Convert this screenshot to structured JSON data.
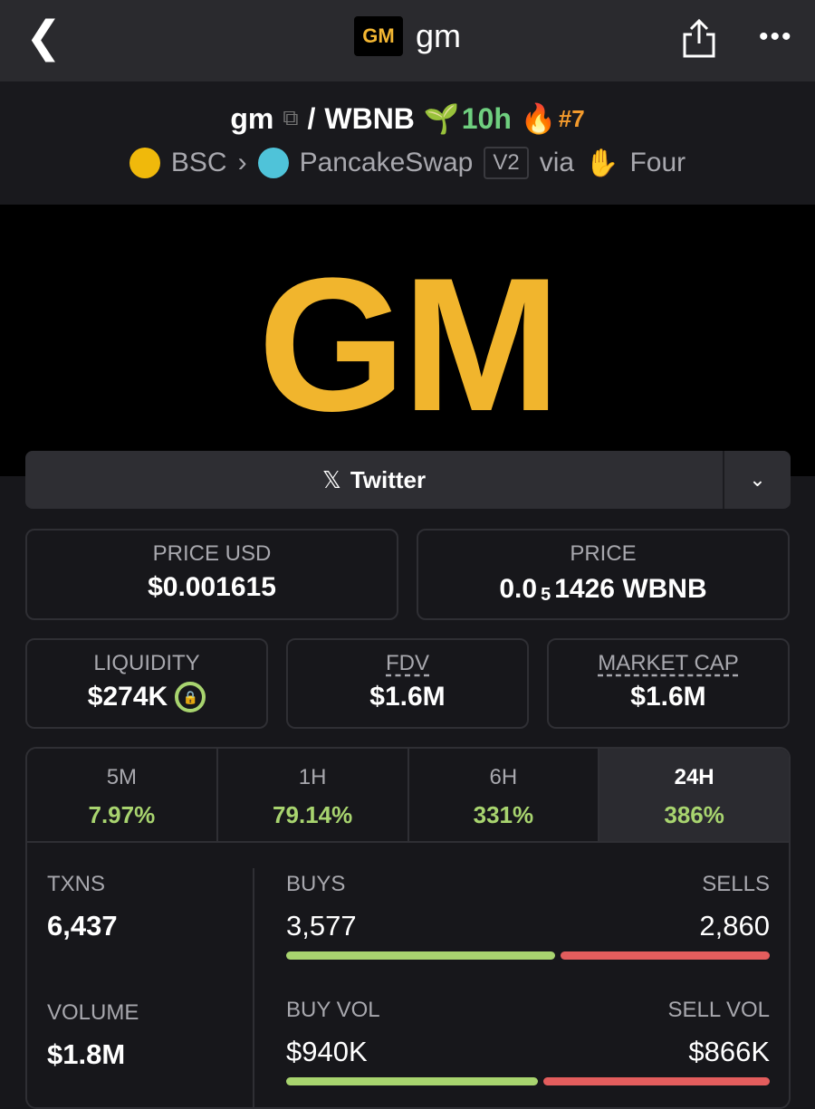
{
  "topbar": {
    "back_icon": "chevron-left-icon",
    "logo_text": "GM",
    "title": "gm",
    "share_icon": "share-icon",
    "more_icon": "ellipsis-icon"
  },
  "pair": {
    "base": "gm",
    "separator": "/",
    "quote": "WBNB",
    "age": "10h",
    "rank": "#7",
    "age_color": "#6fcf7f",
    "rank_color": "#f39a2c"
  },
  "route": {
    "chain": "BSC",
    "dex": "PancakeSwap",
    "version": "V2",
    "via": "via",
    "launchpad": "Four"
  },
  "banner": {
    "logo_text": "GM",
    "color": "#f1b52d"
  },
  "social": {
    "label": "Twitter",
    "icon": "x-icon"
  },
  "prices": {
    "usd_label": "PRICE USD",
    "usd_value": "$0.001615",
    "native_label": "PRICE",
    "native_prefix": "0.0",
    "native_zeros": "5",
    "native_digits": "1426 WBNB"
  },
  "stats": {
    "liquidity_label": "LIQUIDITY",
    "liquidity_value": "$274K",
    "fdv_label": "FDV",
    "fdv_value": "$1.6M",
    "mcap_label": "MARKET CAP",
    "mcap_value": "$1.6M"
  },
  "timeframes": [
    {
      "label": "5M",
      "change": "7.97%"
    },
    {
      "label": "1H",
      "change": "79.14%"
    },
    {
      "label": "6H",
      "change": "331%"
    },
    {
      "label": "24H",
      "change": "386%",
      "active": true
    }
  ],
  "txns": {
    "label": "TXNS",
    "value": "6,437",
    "buys_label": "BUYS",
    "buys": "3,577",
    "sells_label": "SELLS",
    "sells": "2,860",
    "buy_fraction": 0.556
  },
  "volume": {
    "label": "VOLUME",
    "value": "$1.8M",
    "buy_label": "BUY VOL",
    "buy": "$940K",
    "sell_label": "SELL VOL",
    "sell": "$866K",
    "buy_fraction": 0.52
  },
  "colors": {
    "positive": "#a8d46f",
    "negative": "#e35d5d"
  }
}
